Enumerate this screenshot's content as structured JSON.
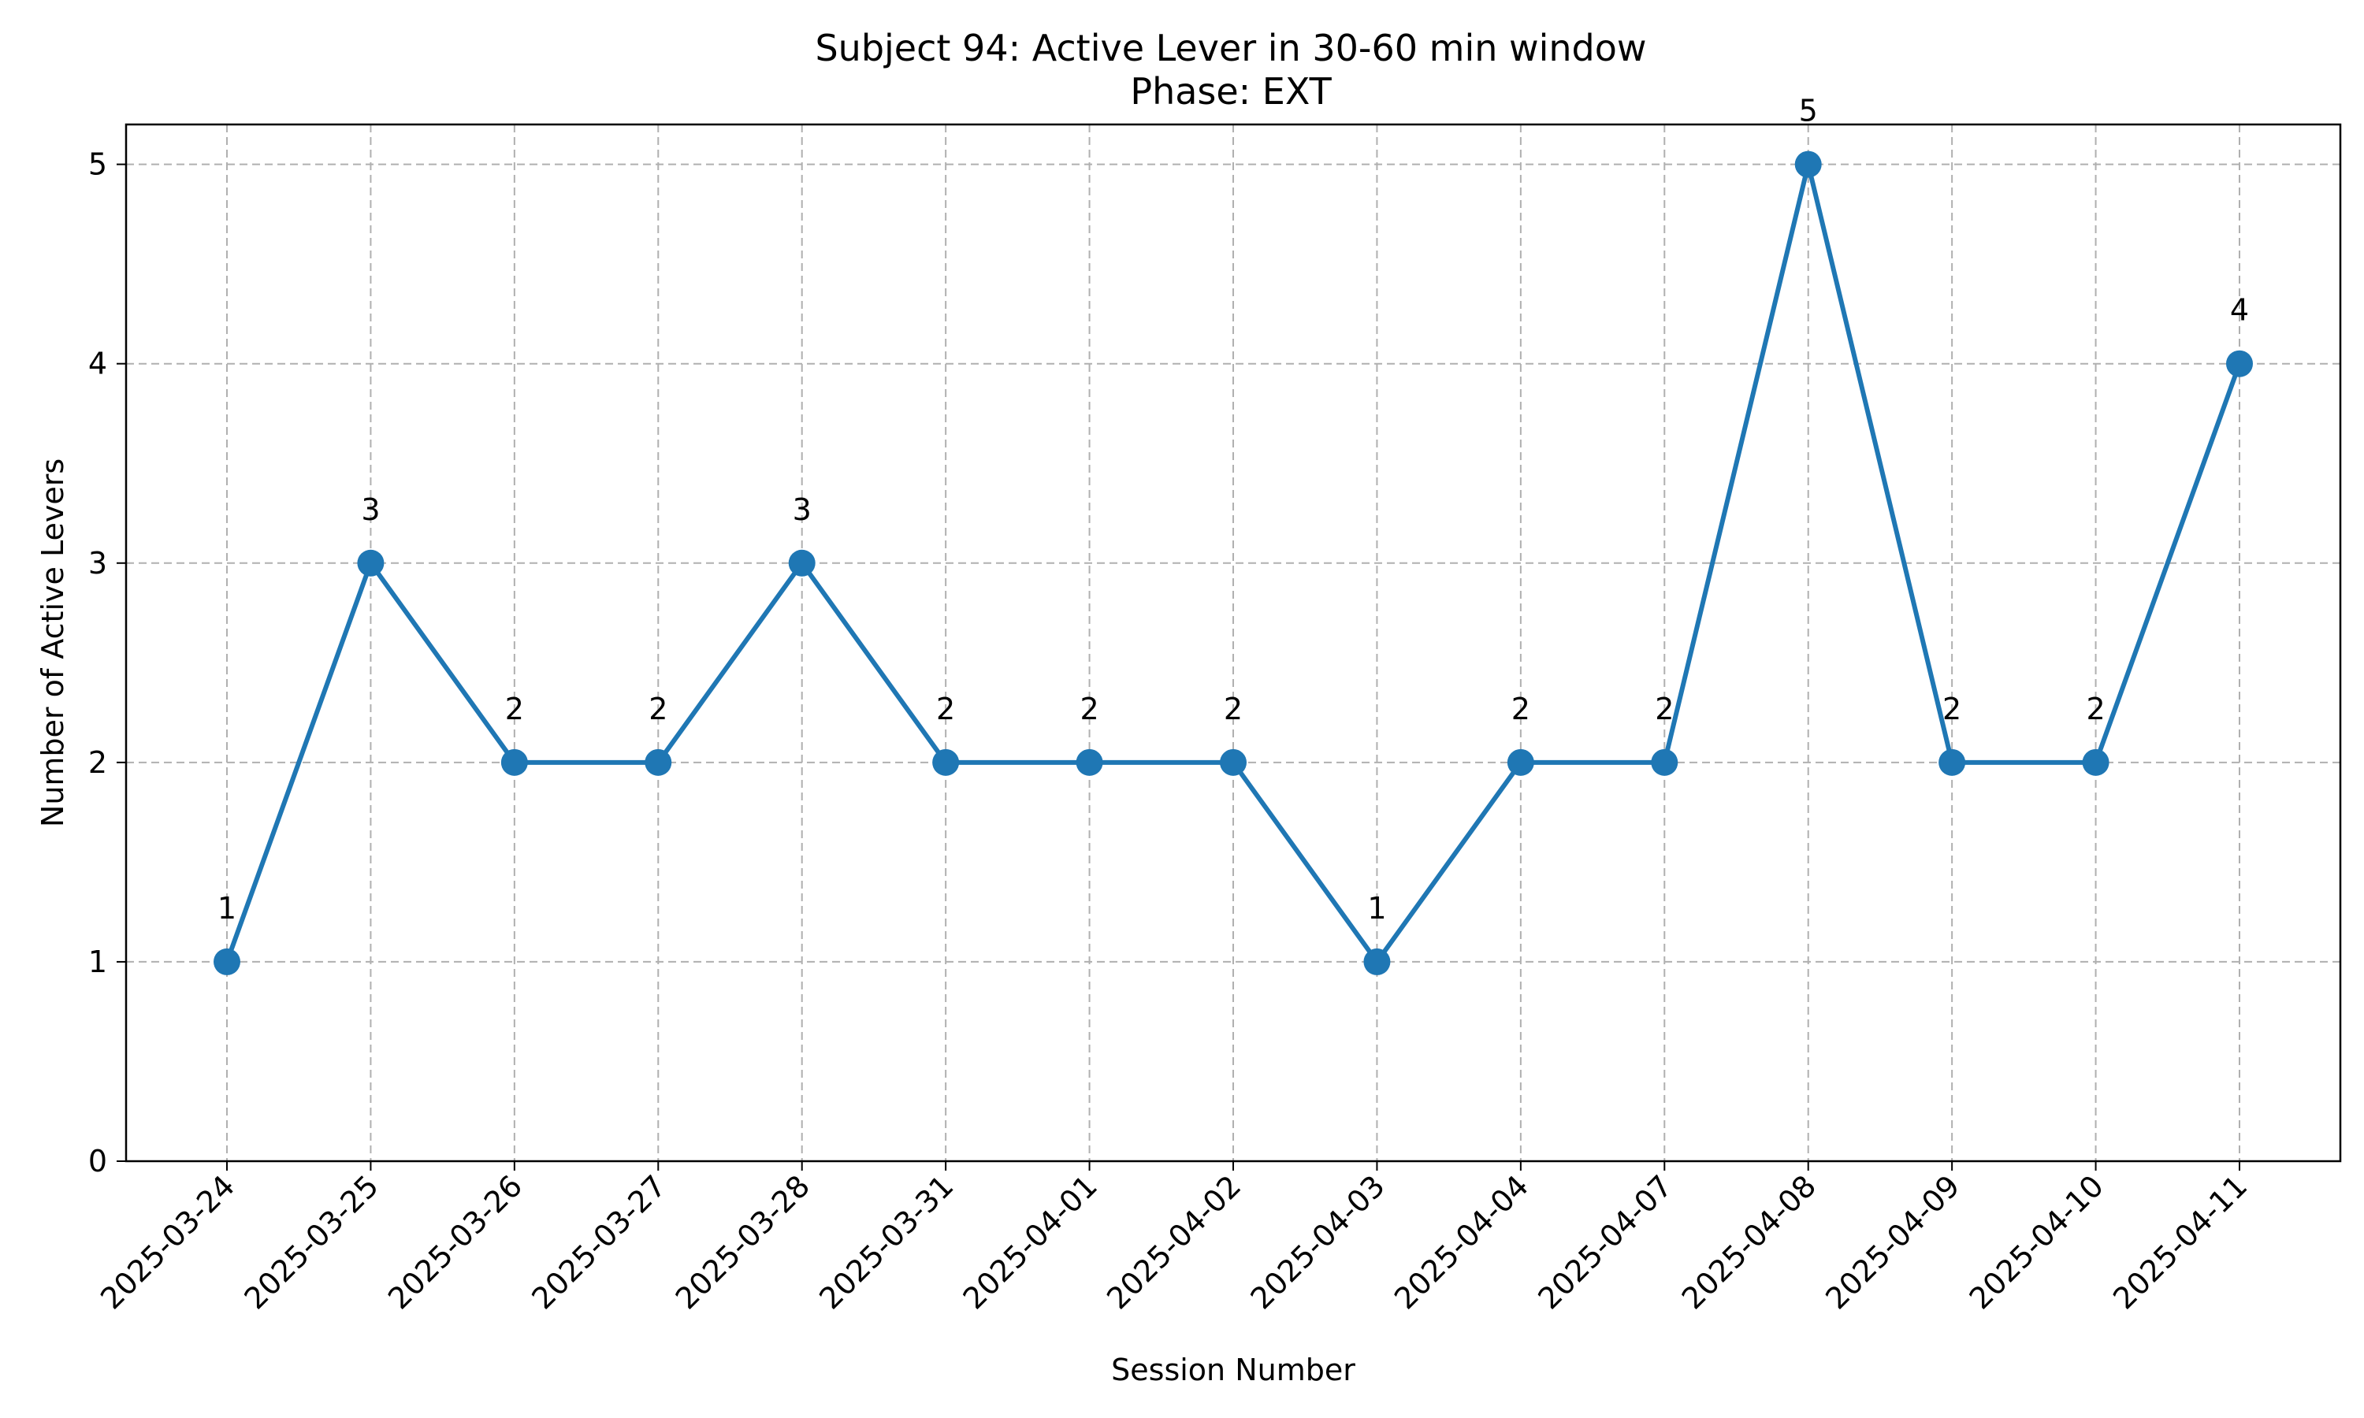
{
  "chart_data": {
    "type": "line",
    "title": "Subject 94: Active Lever in 30-60 min window",
    "subtitle": "Phase: EXT",
    "xlabel": "Session Number",
    "ylabel": "Number of Active Levers",
    "categories": [
      "2025-03-24",
      "2025-03-25",
      "2025-03-26",
      "2025-03-27",
      "2025-03-28",
      "2025-03-31",
      "2025-04-01",
      "2025-04-02",
      "2025-04-03",
      "2025-04-04",
      "2025-04-07",
      "2025-04-08",
      "2025-04-09",
      "2025-04-10",
      "2025-04-11"
    ],
    "series": [
      {
        "values": [
          1,
          3,
          2,
          2,
          3,
          2,
          2,
          2,
          1,
          2,
          2,
          5,
          2,
          2,
          4
        ]
      }
    ],
    "ylim": [
      0,
      5.2
    ],
    "yticks": [
      0,
      1,
      2,
      3,
      4,
      5
    ],
    "grid": true,
    "colors": {
      "line": "#1f77b4"
    }
  }
}
